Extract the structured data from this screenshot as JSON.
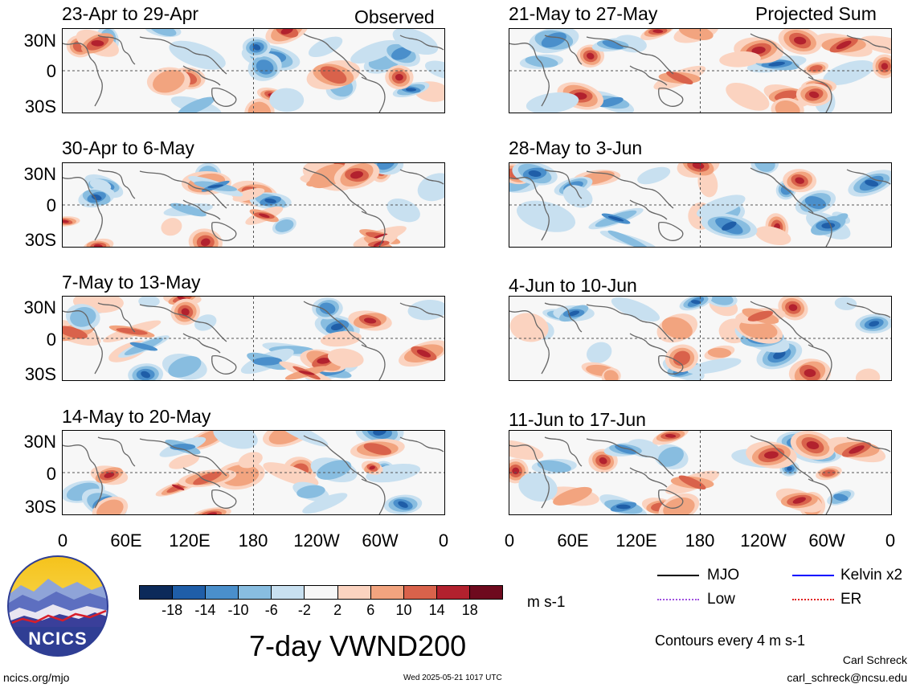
{
  "headers": {
    "observed": "Observed",
    "projected": "Projected Sum"
  },
  "lat_labels": [
    "30N",
    "0",
    "30S"
  ],
  "lon_labels": [
    "0",
    "60E",
    "120E",
    "180",
    "120W",
    "60W",
    "0"
  ],
  "panels": {
    "left": [
      "23-Apr to 29-Apr",
      "30-Apr to 6-May",
      "7-May to 13-May",
      "14-May to 20-May"
    ],
    "right": [
      "21-May to 27-May",
      "28-May to 3-Jun",
      "4-Jun to 10-Jun",
      "11-Jun to 17-Jun"
    ]
  },
  "colorbar": {
    "ticks": [
      "-18",
      "-14",
      "-10",
      "-6",
      "-2",
      "2",
      "6",
      "10",
      "14",
      "18"
    ],
    "colors": [
      "#0c2a5a",
      "#1f5ea8",
      "#4a8fcb",
      "#88bde0",
      "#c8e0f0",
      "#f7f7f7",
      "#fbd3c0",
      "#f2a47f",
      "#d9624b",
      "#b2212e",
      "#6e0a1e"
    ],
    "units": "m s-1"
  },
  "title": "7-day VWND200",
  "legend": {
    "items": [
      {
        "label": "MJO",
        "color": "#000000"
      },
      {
        "label": "Kelvin x2",
        "color": "#0000ff"
      },
      {
        "label": "Low",
        "color": "#a050e0"
      },
      {
        "label": "ER",
        "color": "#e02020"
      }
    ],
    "note": "Contours every 4 m s-1"
  },
  "footer": {
    "site": "ncics.org/mjo",
    "timestamp": "Wed 2025-05-21 1017 UTC",
    "author": "Carl Schreck",
    "email": "carl_schreck@ncsu.edu"
  },
  "logo": {
    "text": "NCICS"
  }
}
